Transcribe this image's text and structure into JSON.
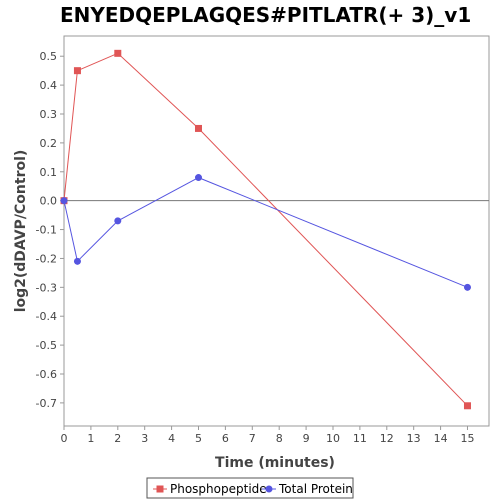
{
  "chart_data": {
    "type": "line",
    "title": "ENYEDQEPLAGQES#PITLATR(+ 3)_v1",
    "xlabel": "Time (minutes)",
    "ylabel": "log2(dDAVP/Control)",
    "xlim": [
      0,
      15.8
    ],
    "ylim": [
      -0.78,
      0.57
    ],
    "x_ticks": [
      0,
      1,
      2,
      3,
      4,
      5,
      6,
      7,
      8,
      9,
      10,
      11,
      12,
      13,
      14,
      15
    ],
    "y_ticks": [
      0.5,
      0.4,
      0.3,
      0.2,
      0.1,
      0.0,
      -0.1,
      -0.2,
      -0.3,
      -0.4,
      -0.5,
      -0.6,
      -0.7
    ],
    "y_tick_labels": [
      "0.5",
      "0.4",
      "0.3",
      "0.2",
      "0.1",
      "0.0",
      "-0.1",
      "-0.2",
      "-0.3",
      "-0.4",
      "-0.5",
      "-0.6",
      "-0.7"
    ],
    "grid": false,
    "zero_line": true,
    "legend_position": "bottom",
    "series": [
      {
        "name": "Phosphopeptide",
        "color": "#e05555",
        "marker": "square",
        "x": [
          0,
          0.5,
          2,
          5,
          15
        ],
        "y": [
          0.0,
          0.45,
          0.51,
          0.25,
          -0.71
        ]
      },
      {
        "name": "Total Protein",
        "color": "#5555e0",
        "marker": "circle",
        "x": [
          0,
          0.5,
          2,
          5,
          15
        ],
        "y": [
          0.0,
          -0.21,
          -0.07,
          0.08,
          -0.3
        ]
      }
    ]
  }
}
